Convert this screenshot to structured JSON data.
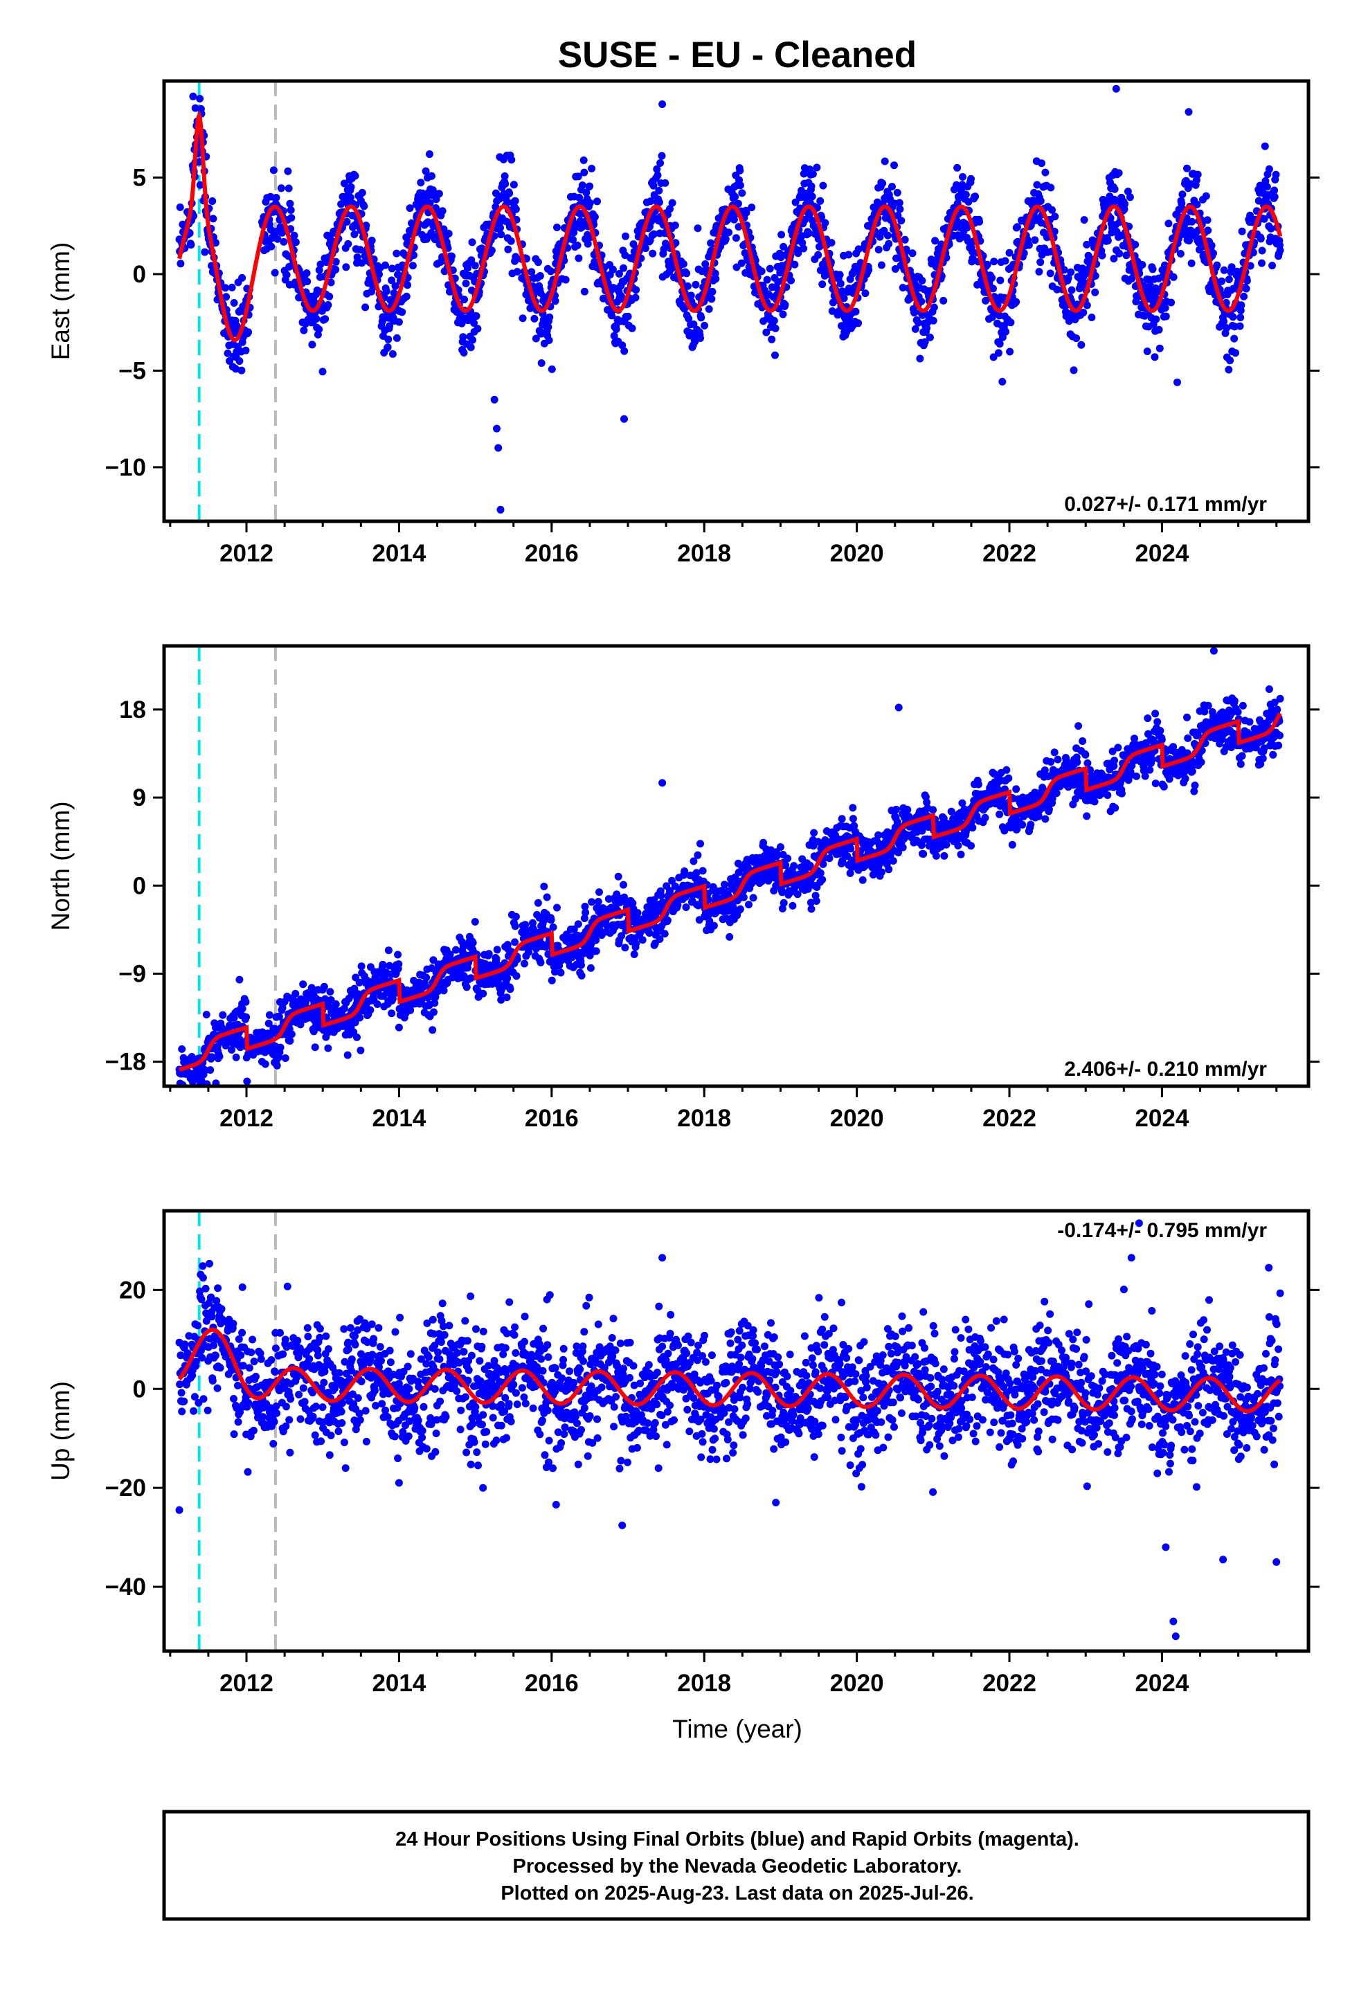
{
  "page": {
    "title": "SUSE  - EU - Cleaned",
    "xlabel": "Time (year)",
    "footer_lines": [
      "24 Hour Positions Using Final Orbits (blue) and Rapid Orbits (magenta).",
      "Processed by the Nevada Geodetic Laboratory.",
      "Plotted on 2025-Aug-23. Last data on 2025-Jul-26."
    ]
  },
  "colors": {
    "points": "#0000ff",
    "model": "#ff0000",
    "event_cyan": "#00e5ee",
    "event_gray": "#bbbbbb",
    "frame": "#000000"
  },
  "chart_data": [
    {
      "type": "scatter",
      "name": "east",
      "ylabel": "East (mm)",
      "rate_label": "0.027+/- 0.171 mm/yr",
      "rate_position": "bottom-right",
      "xlim": [
        2010.92,
        2025.92
      ],
      "ylim": [
        -12.8,
        10.0
      ],
      "x_ticks": [
        2012,
        2014,
        2016,
        2018,
        2020,
        2022,
        2024
      ],
      "x_tick_labels": [
        "2012",
        "2014",
        "2016",
        "2018",
        "2020",
        "2022",
        "2024"
      ],
      "y_ticks": [
        5,
        0,
        -5,
        -10
      ],
      "y_tick_labels": [
        "5",
        "0",
        "−5",
        "−10"
      ],
      "grid": false,
      "events": [
        {
          "x": 2011.38,
          "kind": "cyan"
        },
        {
          "x": 2012.38,
          "kind": "gray"
        }
      ],
      "model": {
        "offset": 0.8,
        "amplitude": 2.7,
        "phase_peak": 0.37,
        "sharpness": 0.6,
        "features": [
          [
            2011.38,
            4.8,
            0.07
          ],
          [
            2011.8,
            -1.6,
            0.25
          ]
        ]
      },
      "points": {
        "start": 2011.12,
        "end": 2025.55,
        "scatter": 1.1,
        "gaps": [
          [
            2012.05,
            2012.2
          ],
          [
            2015.55,
            2015.6
          ]
        ],
        "outliers": [
          [
            2015.25,
            -6.5
          ],
          [
            2015.3,
            -9.0
          ],
          [
            2015.33,
            -12.2
          ],
          [
            2015.28,
            -8.0
          ],
          [
            2011.3,
            9.2
          ],
          [
            2011.33,
            8.6
          ],
          [
            2017.45,
            8.8
          ],
          [
            2023.4,
            9.6
          ],
          [
            2024.35,
            8.4
          ],
          [
            2024.2,
            -5.6
          ],
          [
            2016.95,
            -7.5
          ]
        ]
      }
    },
    {
      "type": "scatter",
      "name": "north",
      "ylabel": "North (mm)",
      "rate_label": "2.406+/- 0.210 mm/yr",
      "rate_position": "bottom-right",
      "xlim": [
        2010.92,
        2025.92
      ],
      "ylim": [
        -20.5,
        24.5
      ],
      "x_ticks": [
        2012,
        2014,
        2016,
        2018,
        2020,
        2022,
        2024
      ],
      "x_tick_labels": [
        "2012",
        "2014",
        "2016",
        "2018",
        "2020",
        "2022",
        "2024"
      ],
      "y_ticks": [
        18,
        9,
        0,
        -9,
        -18
      ],
      "y_tick_labels": [
        "18",
        "9",
        "0",
        "−9",
        "−18"
      ],
      "grid": false,
      "events": [
        {
          "x": 2011.38,
          "kind": "cyan"
        },
        {
          "x": 2012.38,
          "kind": "gray"
        }
      ],
      "model": {
        "start_value": -16.8,
        "rate": 2.406,
        "ref_year": 2011.5,
        "step_amplitude": 2.2,
        "step_phase": 0.5
      },
      "points": {
        "start": 2011.12,
        "end": 2025.55,
        "scatter": 1.3,
        "gaps": [
          [
            2015.55,
            2015.6
          ]
        ],
        "outliers": [
          [
            2024.68,
            24.0
          ],
          [
            2020.55,
            18.2
          ],
          [
            2017.45,
            10.5
          ],
          [
            2011.6,
            -20.2
          ]
        ]
      }
    },
    {
      "type": "scatter",
      "name": "up",
      "ylabel": "Up (mm)",
      "rate_label": "-0.174+/- 0.795 mm/yr",
      "rate_position": "top-right",
      "xlim": [
        2010.92,
        2025.92
      ],
      "ylim": [
        -53.0,
        36.0
      ],
      "x_ticks": [
        2012,
        2014,
        2016,
        2018,
        2020,
        2022,
        2024
      ],
      "x_tick_labels": [
        "2012",
        "2014",
        "2016",
        "2018",
        "2020",
        "2022",
        "2024"
      ],
      "y_ticks": [
        20,
        0,
        -20,
        -40
      ],
      "y_tick_labels": [
        "20",
        "0",
        "−20",
        "−40"
      ],
      "grid": false,
      "events": [
        {
          "x": 2011.38,
          "kind": "cyan"
        },
        {
          "x": 2012.38,
          "kind": "gray"
        }
      ],
      "model": {
        "offset": 0.0,
        "amplitude": 3.3,
        "phase_peak": 0.62,
        "trend": -0.17,
        "features": [
          [
            2011.38,
            7.0,
            0.35
          ],
          [
            2011.7,
            3.0,
            0.3
          ]
        ]
      },
      "points": {
        "start": 2011.12,
        "end": 2025.55,
        "scatter": 6.0,
        "gaps": [
          [
            2015.55,
            2015.6
          ]
        ],
        "outliers": [
          [
            2011.12,
            -24.5
          ],
          [
            2024.15,
            -47.0
          ],
          [
            2024.18,
            -50.0
          ],
          [
            2023.7,
            33.5
          ],
          [
            2017.45,
            26.5
          ],
          [
            2023.6,
            26.5
          ],
          [
            2025.4,
            24.5
          ],
          [
            2024.8,
            -34.5
          ],
          [
            2025.5,
            -35.0
          ],
          [
            2024.05,
            -32.0
          ],
          [
            2014.0,
            -19.0
          ],
          [
            2015.1,
            -20.0
          ]
        ]
      }
    }
  ]
}
